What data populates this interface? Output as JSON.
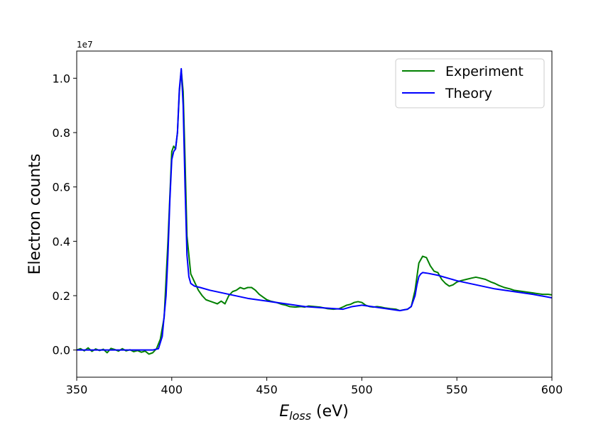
{
  "chart_data": {
    "type": "line",
    "xlabel": "E_loss (eV)",
    "xlabel_main": "E",
    "xlabel_sub": "loss",
    "xlabel_unit": " (eV)",
    "ylabel": "Electron counts",
    "y_offset_label": "1e7",
    "xlim": [
      350,
      600
    ],
    "ylim": [
      -0.1,
      1.1
    ],
    "y_scale_note": "values in units of 1e7",
    "x_ticks": [
      350,
      400,
      450,
      500,
      550,
      600
    ],
    "x_tick_labels": [
      "350",
      "400",
      "450",
      "500",
      "550",
      "600"
    ],
    "y_ticks": [
      0.0,
      0.2,
      0.4,
      0.6,
      0.8,
      1.0
    ],
    "y_tick_labels": [
      "0.0",
      "0.2",
      "0.4",
      "0.6",
      "0.8",
      "1.0"
    ],
    "grid": false,
    "legend_position": "top-right",
    "series": [
      {
        "name": "Experiment",
        "color": "#008000",
        "x": [
          350,
          352,
          354,
          356,
          358,
          360,
          362,
          364,
          366,
          368,
          370,
          372,
          374,
          376,
          378,
          380,
          382,
          384,
          386,
          388,
          390,
          392,
          394,
          396,
          398,
          400,
          401,
          402,
          403,
          404,
          405,
          406,
          407,
          408,
          410,
          412,
          414,
          416,
          418,
          420,
          422,
          424,
          426,
          428,
          430,
          432,
          434,
          436,
          438,
          440,
          442,
          444,
          446,
          448,
          450,
          452,
          455,
          458,
          460,
          462,
          465,
          468,
          470,
          472,
          475,
          478,
          480,
          482,
          485,
          488,
          490,
          492,
          494,
          496,
          498,
          500,
          502,
          504,
          506,
          508,
          510,
          512,
          515,
          518,
          520,
          522,
          524,
          526,
          528,
          530,
          532,
          534,
          536,
          538,
          540,
          542,
          544,
          546,
          548,
          550,
          552,
          555,
          558,
          560,
          562,
          565,
          568,
          570,
          572,
          575,
          578,
          580,
          582,
          585,
          588,
          590,
          592,
          595,
          598,
          600
        ],
        "y": [
          0.0,
          0.005,
          -0.003,
          0.008,
          -0.005,
          0.004,
          -0.002,
          0.003,
          -0.01,
          0.006,
          0.002,
          -0.004,
          0.005,
          -0.003,
          0.001,
          -0.006,
          -0.002,
          -0.008,
          -0.004,
          -0.015,
          -0.01,
          0.005,
          0.04,
          0.12,
          0.4,
          0.73,
          0.75,
          0.74,
          0.8,
          0.95,
          1.03,
          0.95,
          0.7,
          0.42,
          0.28,
          0.25,
          0.22,
          0.2,
          0.185,
          0.18,
          0.175,
          0.17,
          0.18,
          0.17,
          0.2,
          0.215,
          0.22,
          0.23,
          0.225,
          0.23,
          0.23,
          0.22,
          0.205,
          0.195,
          0.185,
          0.18,
          0.175,
          0.168,
          0.165,
          0.16,
          0.158,
          0.16,
          0.158,
          0.162,
          0.16,
          0.158,
          0.155,
          0.152,
          0.15,
          0.152,
          0.158,
          0.165,
          0.168,
          0.175,
          0.178,
          0.175,
          0.165,
          0.16,
          0.158,
          0.16,
          0.158,
          0.155,
          0.152,
          0.15,
          0.145,
          0.148,
          0.15,
          0.16,
          0.22,
          0.32,
          0.345,
          0.34,
          0.31,
          0.29,
          0.285,
          0.26,
          0.245,
          0.235,
          0.24,
          0.25,
          0.255,
          0.26,
          0.265,
          0.268,
          0.265,
          0.26,
          0.25,
          0.245,
          0.238,
          0.23,
          0.225,
          0.22,
          0.218,
          0.215,
          0.212,
          0.21,
          0.208,
          0.205,
          0.205,
          0.203
        ]
      },
      {
        "name": "Theory",
        "color": "#0000ff",
        "x": [
          350,
          360,
          370,
          380,
          385,
          390,
          393,
          395,
          397,
          398,
          399,
          400,
          401,
          402,
          403,
          404,
          405,
          406,
          407,
          408,
          409,
          410,
          412,
          415,
          420,
          430,
          440,
          450,
          460,
          470,
          480,
          490,
          495,
          500,
          510,
          520,
          524,
          526,
          528,
          529,
          530,
          531,
          532,
          535,
          540,
          550,
          560,
          570,
          580,
          590,
          600
        ],
        "y": [
          0.0,
          0.0,
          0.0,
          0.0,
          0.0,
          0.0,
          0.005,
          0.05,
          0.2,
          0.35,
          0.55,
          0.7,
          0.73,
          0.74,
          0.8,
          0.96,
          1.035,
          0.9,
          0.6,
          0.35,
          0.27,
          0.245,
          0.235,
          0.23,
          0.22,
          0.205,
          0.19,
          0.18,
          0.17,
          0.16,
          0.155,
          0.15,
          0.16,
          0.165,
          0.155,
          0.145,
          0.15,
          0.16,
          0.2,
          0.24,
          0.27,
          0.28,
          0.285,
          0.282,
          0.275,
          0.255,
          0.24,
          0.225,
          0.215,
          0.205,
          0.192
        ]
      }
    ]
  }
}
